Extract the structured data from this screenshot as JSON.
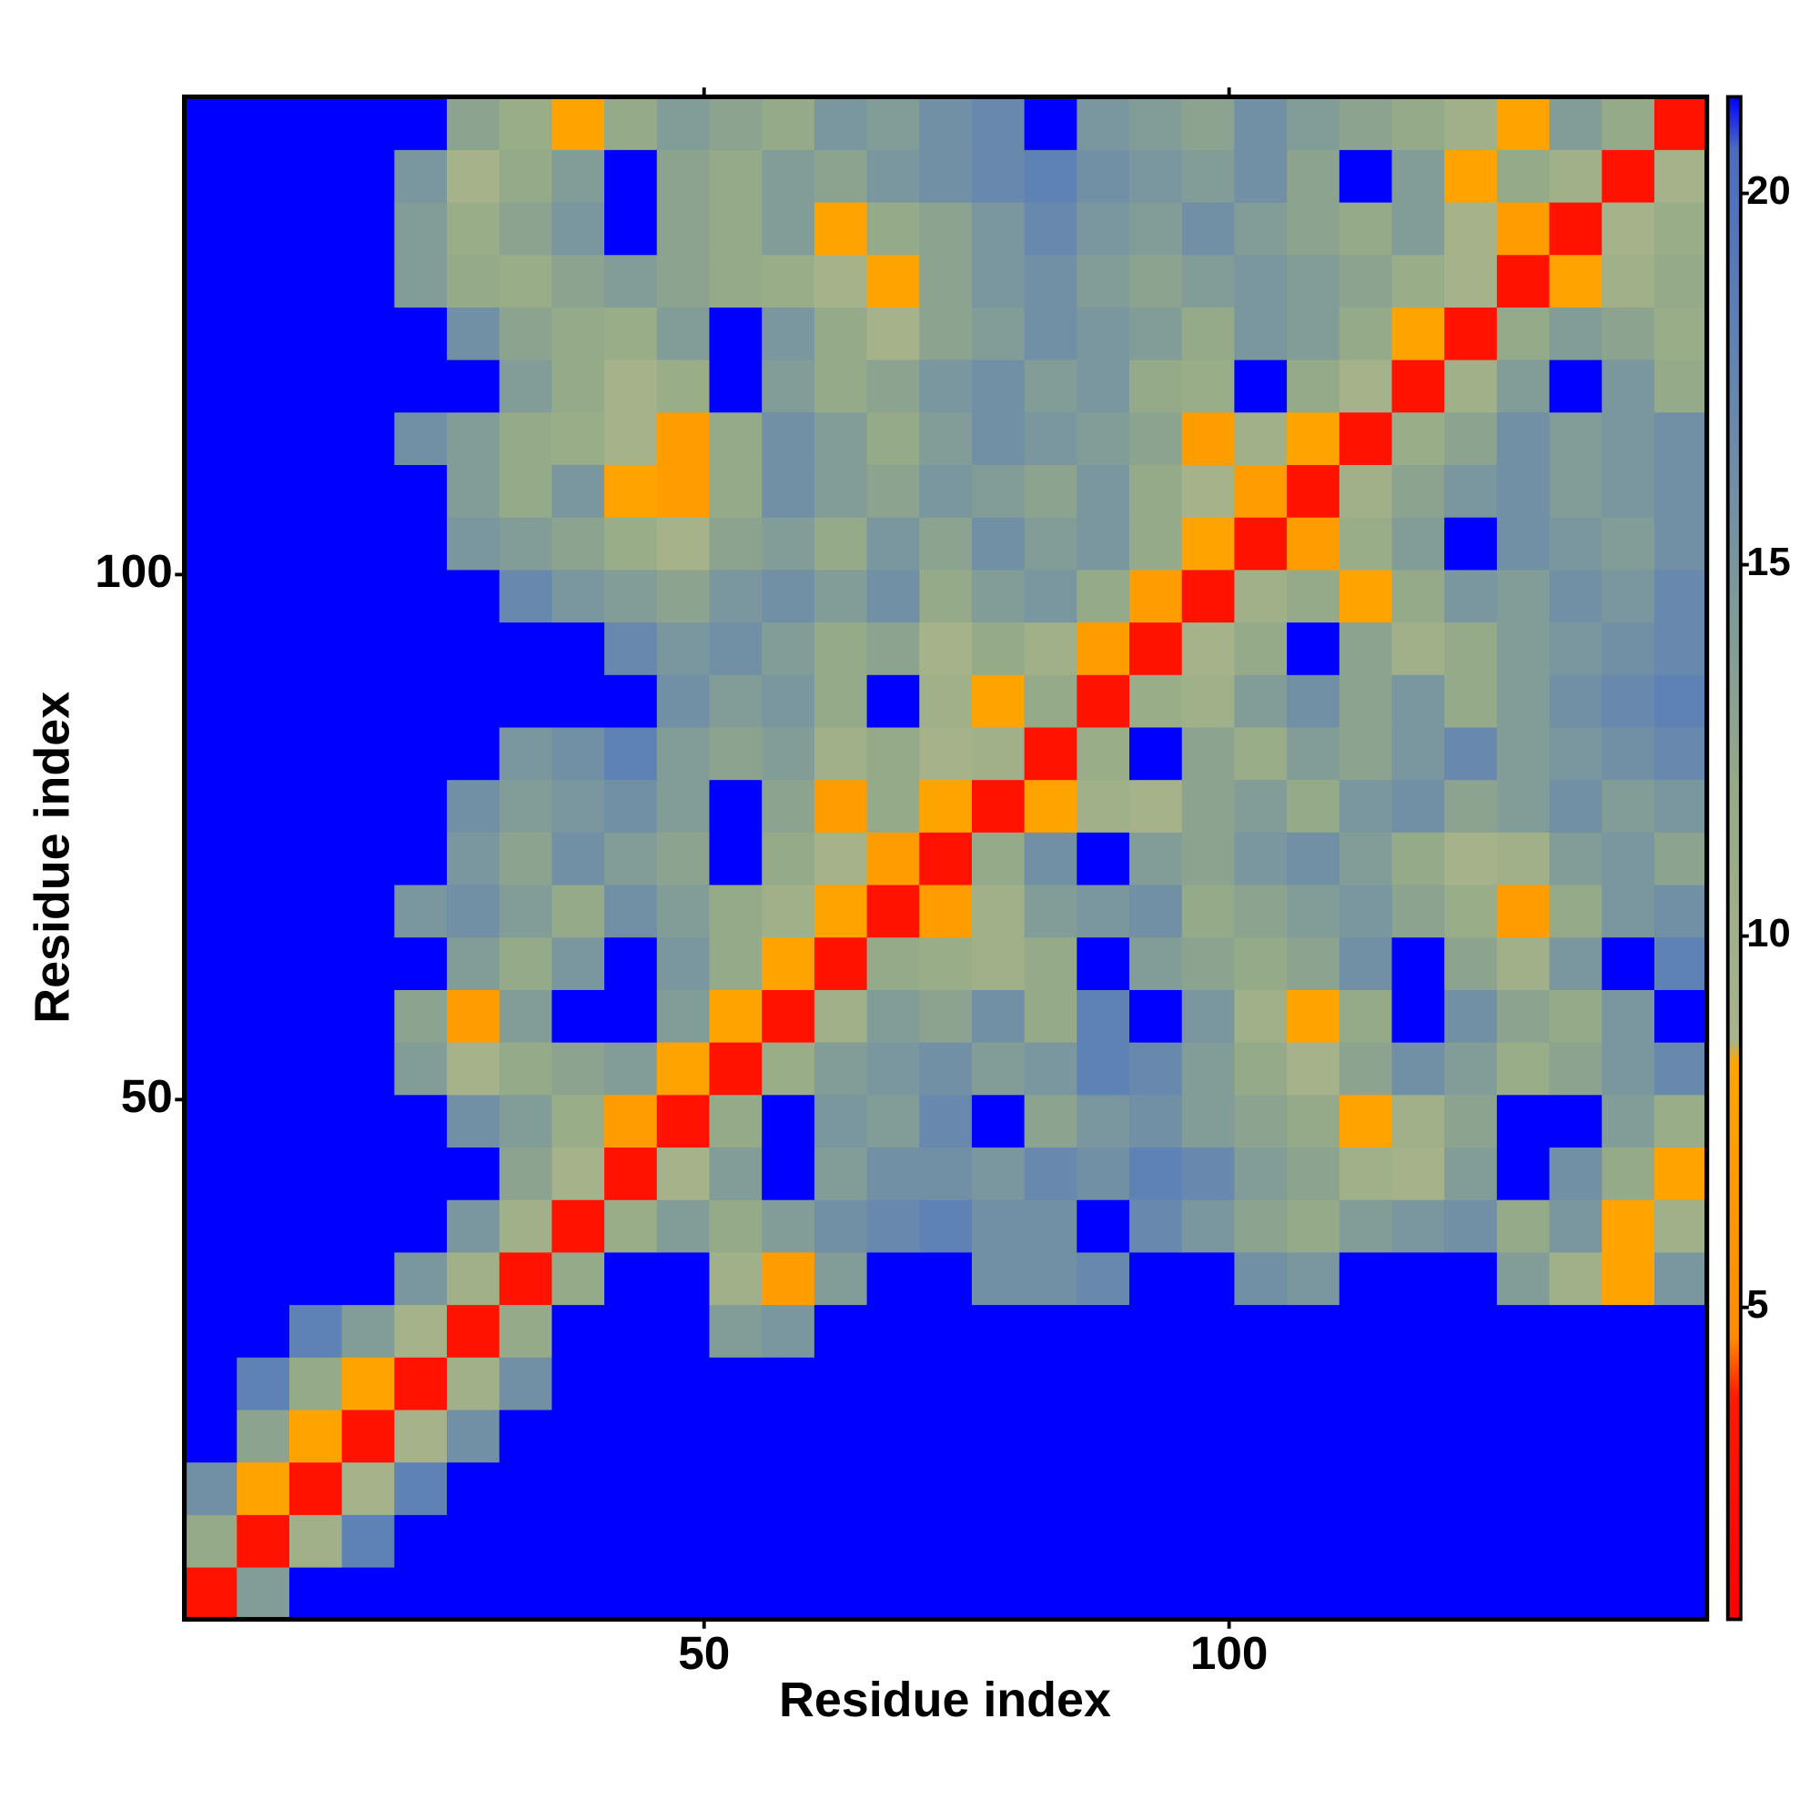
{
  "chart_data": {
    "type": "heatmap",
    "x_label": "Residue index",
    "y_label": "Residue index",
    "xlim": [
      0.5,
      145.5
    ],
    "ylim": [
      0.5,
      145.5
    ],
    "xticks": [
      50,
      100
    ],
    "yticks": [
      50,
      100
    ],
    "x_edges": [
      0.5,
      5.5,
      10.5,
      15.5,
      20.5,
      25.5,
      30.5,
      35.5,
      40.5,
      45.5,
      50.5,
      55.5,
      60.5,
      65.5,
      70.5,
      75.5,
      80.5,
      85.5,
      90.5,
      95.5,
      100.5,
      105.5,
      110.5,
      115.5,
      120.5,
      125.5,
      130.5,
      135.5,
      140.5,
      145.5
    ],
    "y_edges": [
      0.5,
      5.5,
      10.5,
      15.5,
      20.5,
      25.5,
      30.5,
      35.5,
      40.5,
      45.5,
      50.5,
      55.5,
      60.5,
      65.5,
      70.5,
      75.5,
      80.5,
      85.5,
      90.5,
      95.5,
      100.5,
      105.5,
      110.5,
      115.5,
      120.5,
      125.5,
      130.5,
      135.5,
      140.5,
      145.5
    ],
    "zlim": [
      0.8,
      21.3
    ],
    "zticks": [
      5,
      10,
      15,
      20
    ],
    "colorscale": [
      {
        "value": 0.8,
        "color": "#ff0000"
      },
      {
        "value": 3.8,
        "color": "#ff1a00"
      },
      {
        "value": 4.6,
        "color": "#ff8c00"
      },
      {
        "value": 8.3,
        "color": "#ffa500"
      },
      {
        "value": 8.6,
        "color": "#a8b48a"
      },
      {
        "value": 12,
        "color": "#94aa88"
      },
      {
        "value": 18,
        "color": "#5f82b4"
      },
      {
        "value": 20.6,
        "color": "#4a6cc0"
      },
      {
        "value": 21.3,
        "color": "#0000ff"
      }
    ],
    "z": [
      [
        3,
        14,
        22,
        22,
        22,
        22,
        22,
        22,
        22,
        22,
        22,
        22,
        22,
        22,
        22,
        22,
        22,
        22,
        22,
        22,
        22,
        22,
        22,
        22,
        22,
        22,
        22,
        22,
        22
      ],
      [
        12,
        3,
        10,
        18,
        22,
        22,
        22,
        22,
        22,
        22,
        22,
        22,
        22,
        22,
        22,
        22,
        22,
        22,
        22,
        22,
        22,
        22,
        22,
        22,
        22,
        22,
        22,
        22,
        22
      ],
      [
        16,
        8,
        3,
        9,
        18,
        22,
        22,
        22,
        22,
        22,
        22,
        22,
        22,
        22,
        22,
        22,
        22,
        22,
        22,
        22,
        22,
        22,
        22,
        22,
        22,
        22,
        22,
        22,
        22
      ],
      [
        22,
        13,
        8,
        3,
        9,
        16,
        22,
        22,
        22,
        22,
        22,
        22,
        22,
        22,
        22,
        22,
        22,
        22,
        22,
        22,
        22,
        22,
        22,
        22,
        22,
        22,
        22,
        22,
        22
      ],
      [
        22,
        18,
        12,
        8,
        3,
        10,
        16,
        22,
        22,
        22,
        22,
        22,
        22,
        22,
        22,
        22,
        22,
        22,
        22,
        22,
        22,
        22,
        22,
        22,
        22,
        22,
        22,
        22,
        22
      ],
      [
        22,
        22,
        18,
        14,
        9,
        3,
        12,
        22,
        22,
        22,
        14,
        15,
        22,
        22,
        22,
        22,
        22,
        22,
        22,
        22,
        22,
        22,
        22,
        22,
        22,
        22,
        22,
        22,
        22
      ],
      [
        22,
        22,
        22,
        22,
        15,
        10,
        3,
        12,
        22,
        22,
        10,
        7,
        14,
        22,
        22,
        16,
        16,
        17,
        22,
        22,
        16,
        15,
        22,
        22,
        22,
        14,
        10,
        8,
        15
      ],
      [
        22,
        22,
        22,
        22,
        22,
        15,
        10,
        3,
        11,
        14,
        12,
        14,
        16,
        17,
        18,
        16,
        16,
        22,
        17,
        15,
        13,
        12,
        14,
        15,
        16,
        12,
        15,
        8,
        10
      ],
      [
        22,
        22,
        22,
        22,
        22,
        22,
        13,
        9,
        3,
        9,
        14,
        22,
        14,
        16,
        16,
        15,
        17,
        16,
        18,
        17,
        14,
        13,
        10,
        9,
        14,
        22,
        16,
        12,
        8
      ],
      [
        22,
        22,
        22,
        22,
        22,
        16,
        14,
        11,
        7,
        3,
        12,
        22,
        15,
        14,
        17,
        22,
        13,
        15,
        16,
        14,
        13,
        12,
        8,
        10,
        13,
        22,
        22,
        14,
        11
      ],
      [
        22,
        22,
        22,
        22,
        14,
        9,
        12,
        13,
        14,
        8,
        3,
        11,
        14,
        15,
        16,
        14,
        15,
        18,
        17,
        14,
        12,
        9,
        13,
        16,
        14,
        11,
        13,
        15,
        17
      ],
      [
        22,
        22,
        22,
        22,
        13,
        7,
        14,
        22,
        22,
        14,
        8,
        3,
        10,
        14,
        13,
        16,
        12,
        18,
        22,
        15,
        10,
        8,
        12,
        22,
        16,
        13,
        12,
        15,
        22
      ],
      [
        22,
        22,
        22,
        22,
        22,
        14,
        12,
        15,
        22,
        15,
        12,
        8,
        3,
        12,
        11,
        10,
        12,
        22,
        14,
        13,
        12,
        13,
        16,
        22,
        13,
        10,
        15,
        22,
        18
      ],
      [
        22,
        22,
        22,
        22,
        15,
        16,
        14,
        12,
        16,
        14,
        12,
        10,
        8,
        3,
        7,
        10,
        14,
        15,
        16,
        12,
        13,
        14,
        15,
        13,
        11,
        7,
        12,
        15,
        16
      ],
      [
        22,
        22,
        22,
        22,
        22,
        15,
        13,
        16,
        14,
        13,
        22,
        12,
        9,
        7,
        3,
        12,
        16,
        22,
        14,
        13,
        15,
        16,
        14,
        12,
        9,
        10,
        14,
        15,
        13
      ],
      [
        22,
        22,
        22,
        22,
        22,
        16,
        14,
        15,
        16,
        14,
        22,
        13,
        7,
        12,
        8,
        3,
        8,
        10,
        9,
        13,
        14,
        12,
        15,
        16,
        13,
        14,
        16,
        14,
        15
      ],
      [
        22,
        22,
        22,
        22,
        22,
        22,
        15,
        16,
        18,
        14,
        13,
        14,
        10,
        12,
        9,
        10,
        3,
        11,
        22,
        13,
        11,
        14,
        13,
        15,
        17,
        14,
        15,
        16,
        17
      ],
      [
        22,
        22,
        22,
        22,
        22,
        22,
        22,
        22,
        22,
        16,
        14,
        15,
        12,
        22,
        10,
        8,
        12,
        3,
        11,
        10,
        14,
        16,
        13,
        15,
        12,
        14,
        16,
        17,
        18
      ],
      [
        22,
        22,
        22,
        22,
        22,
        22,
        22,
        22,
        17,
        15,
        16,
        14,
        12,
        13,
        9,
        12,
        10,
        7,
        3,
        9,
        12,
        22,
        13,
        10,
        12,
        14,
        15,
        16,
        17
      ],
      [
        22,
        22,
        22,
        22,
        22,
        22,
        17,
        15,
        14,
        13,
        15,
        16,
        14,
        16,
        12,
        14,
        15,
        12,
        7,
        3,
        10,
        12,
        8,
        12,
        15,
        14,
        16,
        15,
        17
      ],
      [
        22,
        22,
        22,
        22,
        22,
        15,
        14,
        13,
        11,
        9,
        13,
        14,
        12,
        15,
        13,
        16,
        14,
        15,
        12,
        8,
        3,
        7,
        11,
        14,
        22,
        16,
        15,
        14,
        16
      ],
      [
        22,
        22,
        22,
        22,
        22,
        14,
        12,
        15,
        8,
        7,
        12,
        16,
        14,
        13,
        15,
        14,
        13,
        15,
        12,
        9,
        7,
        3,
        10,
        13,
        15,
        16,
        14,
        15,
        16
      ],
      [
        22,
        22,
        22,
        22,
        16,
        14,
        12,
        11,
        9,
        7,
        12,
        16,
        14,
        12,
        14,
        16,
        15,
        14,
        13,
        7,
        10,
        8,
        3,
        11,
        13,
        16,
        14,
        15,
        16
      ],
      [
        22,
        22,
        22,
        22,
        22,
        22,
        14,
        12,
        9,
        11,
        22,
        14,
        12,
        13,
        15,
        16,
        14,
        15,
        12,
        11,
        22,
        12,
        9,
        3,
        10,
        14,
        22,
        15,
        12
      ],
      [
        22,
        22,
        22,
        22,
        22,
        16,
        13,
        12,
        11,
        14,
        22,
        15,
        12,
        9,
        13,
        14,
        16,
        15,
        14,
        12,
        15,
        14,
        12,
        8,
        3,
        12,
        14,
        13,
        11
      ],
      [
        22,
        22,
        22,
        22,
        14,
        12,
        11,
        13,
        14,
        13,
        12,
        11,
        9,
        8,
        13,
        15,
        16,
        14,
        13,
        14,
        15,
        14,
        13,
        11,
        9,
        3,
        8,
        10,
        12
      ],
      [
        22,
        22,
        22,
        22,
        14,
        11,
        13,
        15,
        22,
        13,
        12,
        14,
        8,
        12,
        13,
        15,
        17,
        15,
        14,
        16,
        14,
        13,
        12,
        14,
        9,
        7,
        3,
        9,
        11
      ],
      [
        22,
        22,
        22,
        22,
        15,
        9,
        12,
        14,
        22,
        13,
        12,
        14,
        13,
        15,
        16,
        17,
        18,
        16,
        15,
        14,
        16,
        13,
        22,
        14,
        8,
        12,
        10,
        3,
        9
      ],
      [
        22,
        22,
        22,
        22,
        22,
        13,
        11,
        8,
        12,
        14,
        13,
        12,
        15,
        14,
        16,
        17,
        22,
        15,
        14,
        13,
        16,
        14,
        13,
        12,
        10,
        8,
        14,
        12,
        3
      ]
    ]
  }
}
